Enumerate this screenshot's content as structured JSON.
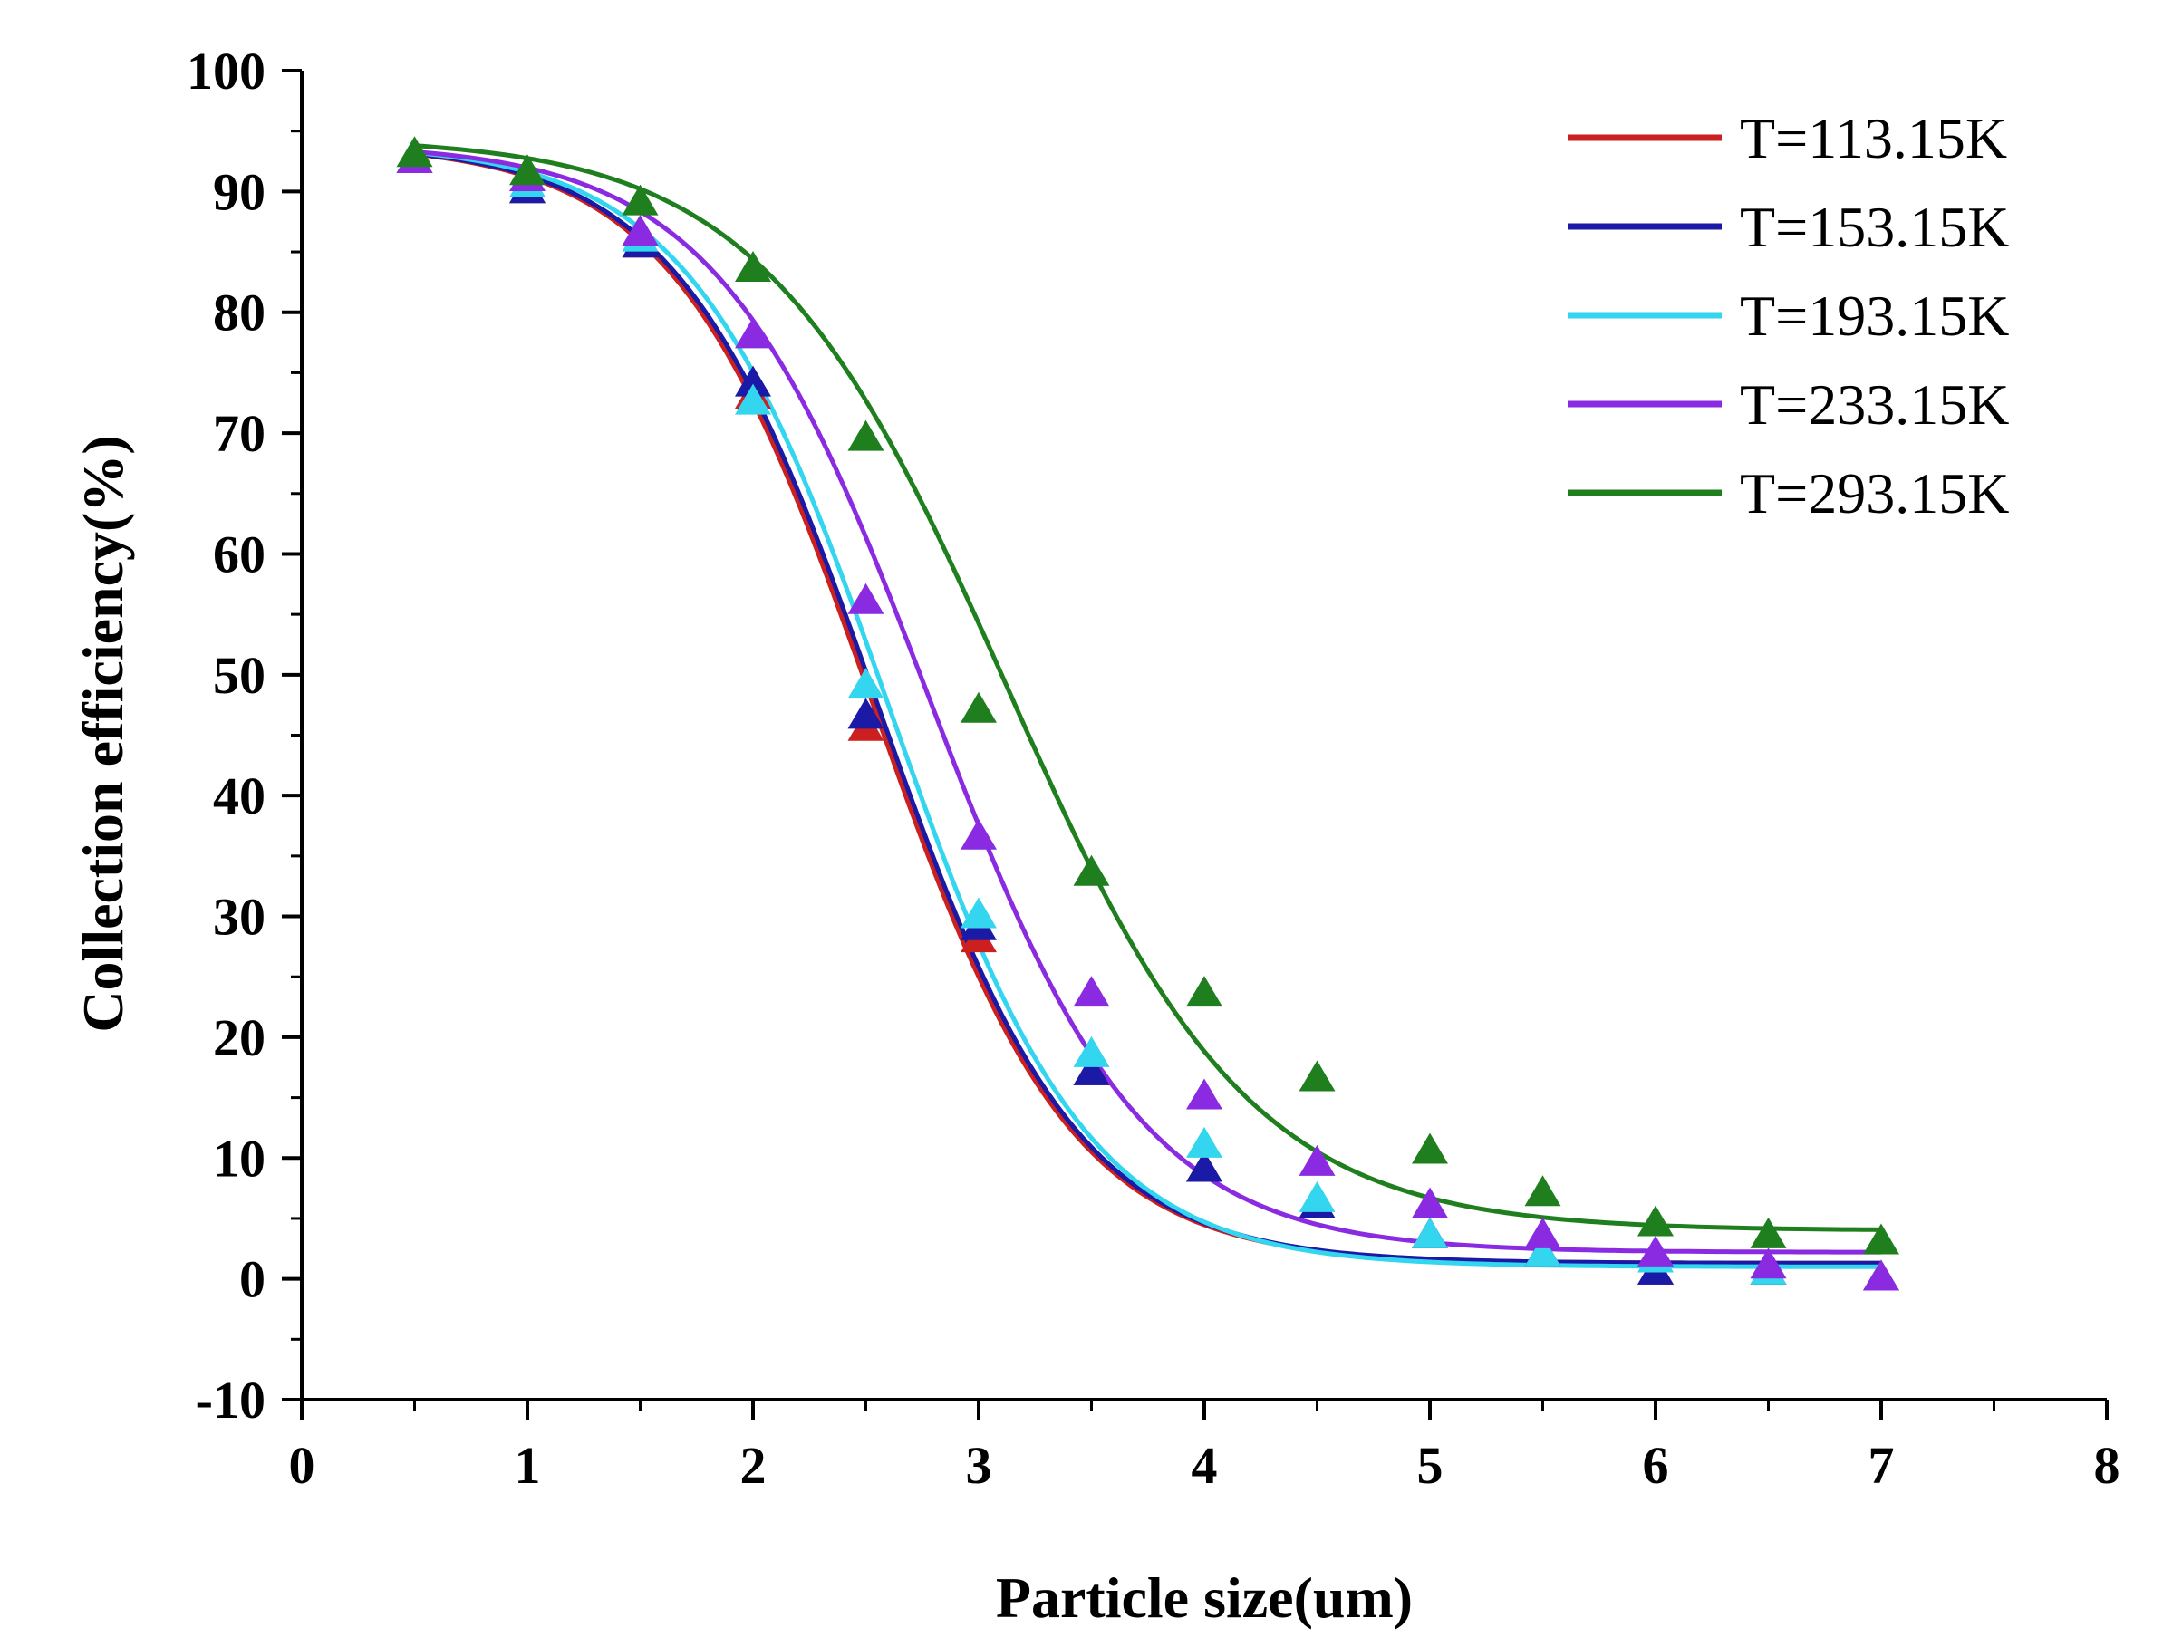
{
  "chart_data": {
    "type": "line",
    "title": "",
    "xlabel": "Particle size(um)",
    "ylabel": "Collection efficiency(%)",
    "xlim": [
      0,
      8
    ],
    "ylim": [
      -10,
      100
    ],
    "x_ticks": [
      "0",
      "1",
      "2",
      "3",
      "4",
      "5",
      "6",
      "7",
      "8"
    ],
    "y_ticks": [
      "-10",
      "0",
      "10",
      "20",
      "30",
      "40",
      "50",
      "60",
      "70",
      "80",
      "90",
      "100"
    ],
    "grid": false,
    "legend_position": "top-right",
    "x": [
      0.5,
      1.0,
      1.5,
      2.0,
      2.5,
      3.0,
      3.5,
      4.0,
      4.5,
      5.0,
      5.5,
      6.0,
      6.5,
      7.0
    ],
    "series": [
      {
        "name": "T=113.15K",
        "color": "#cc1f1f",
        "points": [
          92.5,
          90.0,
          85.5,
          73.0,
          45.5,
          28.0,
          17.0,
          9.0,
          6.0,
          3.5,
          2.0,
          0.5,
          0.5,
          0.0
        ],
        "fit": {
          "A1": 94.0,
          "A2": 1.3,
          "x0": 2.53,
          "dx": 0.44
        }
      },
      {
        "name": "T=153.15K",
        "color": "#1a1aa6",
        "points": [
          92.5,
          90.0,
          85.5,
          74.0,
          46.5,
          29.0,
          17.0,
          9.0,
          6.0,
          3.5,
          2.0,
          0.5,
          0.5,
          0.0
        ],
        "fit": {
          "A1": 94.0,
          "A2": 1.3,
          "x0": 2.55,
          "dx": 0.44
        }
      },
      {
        "name": "T=193.15K",
        "color": "#33d6ee",
        "points": [
          92.5,
          90.5,
          86.0,
          72.5,
          49.0,
          30.0,
          18.5,
          11.0,
          6.5,
          3.5,
          2.0,
          1.5,
          0.5,
          0.0
        ],
        "fit": {
          "A1": 94.0,
          "A2": 1.0,
          "x0": 2.6,
          "dx": 0.44
        }
      },
      {
        "name": "T=233.15K",
        "color": "#8a2be2",
        "points": [
          92.5,
          91.0,
          86.5,
          78.0,
          56.0,
          36.5,
          23.5,
          15.0,
          9.5,
          6.0,
          3.5,
          2.0,
          1.0,
          0.0
        ],
        "fit": {
          "A1": 94.0,
          "A2": 2.2,
          "x0": 2.78,
          "dx": 0.47
        }
      },
      {
        "name": "T=293.15K",
        "color": "#1f7f1f",
        "points": [
          93.0,
          91.5,
          89.0,
          83.5,
          69.5,
          47.0,
          33.5,
          23.5,
          16.5,
          10.5,
          7.0,
          4.5,
          3.5,
          3.0
        ],
        "fit": {
          "A1": 94.5,
          "A2": 4.0,
          "x0": 3.12,
          "dx": 0.54
        }
      }
    ]
  }
}
